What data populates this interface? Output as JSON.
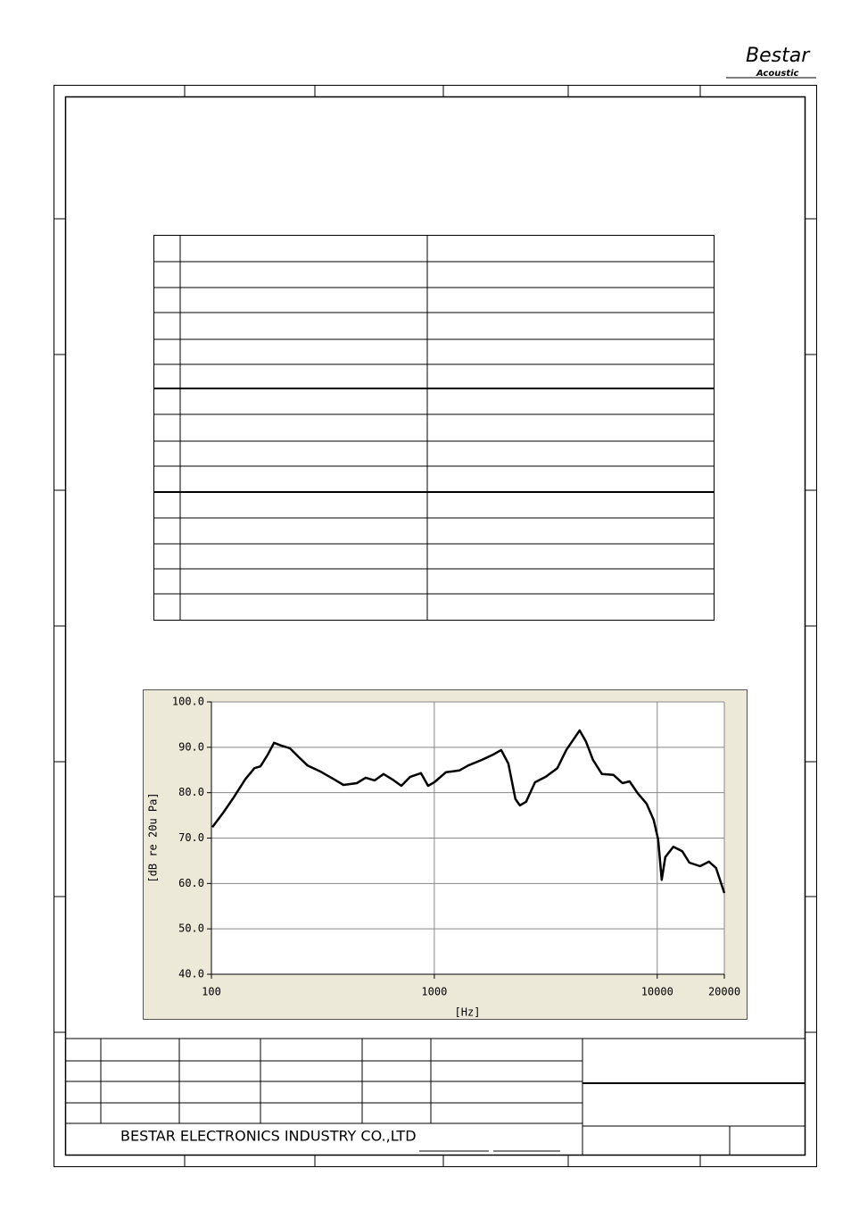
{
  "header": {
    "logo": "Bestar",
    "logo_sub": "Acoustic"
  },
  "footer": {
    "company": "BESTAR ELECTRONICS INDUSTRY CO.,LTD"
  },
  "chart_data": {
    "type": "line",
    "y_label": "[dB re 20u Pa]",
    "x_label": "[Hz]",
    "log_x": true,
    "grid": true,
    "color": "#000000",
    "xlim": [
      100,
      20000
    ],
    "xticks": [
      100,
      1000,
      10000,
      20000
    ],
    "ylim": [
      40,
      100
    ],
    "yticks": [
      {
        "value": 40,
        "label": "40.0"
      },
      {
        "value": 50,
        "label": "50.0"
      },
      {
        "value": 60,
        "label": "60.0"
      },
      {
        "value": 70,
        "label": "70.0"
      },
      {
        "value": 80,
        "label": "80.0"
      },
      {
        "value": 90,
        "label": "90.0"
      },
      {
        "value": 100,
        "label": "100.0"
      }
    ],
    "x": [
      101,
      113,
      126,
      142,
      156,
      166,
      179,
      191,
      205,
      225,
      247,
      270,
      310,
      356,
      391,
      449,
      492,
      540,
      592,
      649,
      711,
      780,
      871,
      938,
      1000,
      1127,
      1294,
      1419,
      1629,
      1837,
      1995,
      2148,
      2312,
      2421,
      2582,
      2831,
      3162,
      3565,
      3908,
      4207,
      4487,
      4786,
      5152,
      5649,
      6368,
      6982,
      7516,
      8166,
      8954,
      9638,
      10093,
      10471,
      10864,
      11803,
      12942,
      13932,
      15560,
      17061,
      18365,
      20000
    ],
    "values": [
      72.4,
      75.6,
      79,
      83,
      85.4,
      85.8,
      88.4,
      91,
      90.4,
      89.8,
      87.8,
      86,
      84.6,
      82.9,
      81.7,
      82.1,
      83.3,
      82.7,
      84.1,
      82.9,
      81.5,
      83.5,
      84.3,
      81.5,
      82.3,
      84.5,
      84.9,
      86,
      87.2,
      88.4,
      89.4,
      86.4,
      78.6,
      77.2,
      78,
      82.3,
      83.5,
      85.4,
      89.4,
      91.7,
      93.7,
      91.3,
      87.2,
      84.1,
      83.9,
      82.1,
      82.5,
      79.9,
      77.6,
      74,
      69.7,
      60.8,
      65.8,
      68.1,
      67.1,
      64.6,
      63.8,
      64.8,
      63.4,
      57.9
    ]
  }
}
